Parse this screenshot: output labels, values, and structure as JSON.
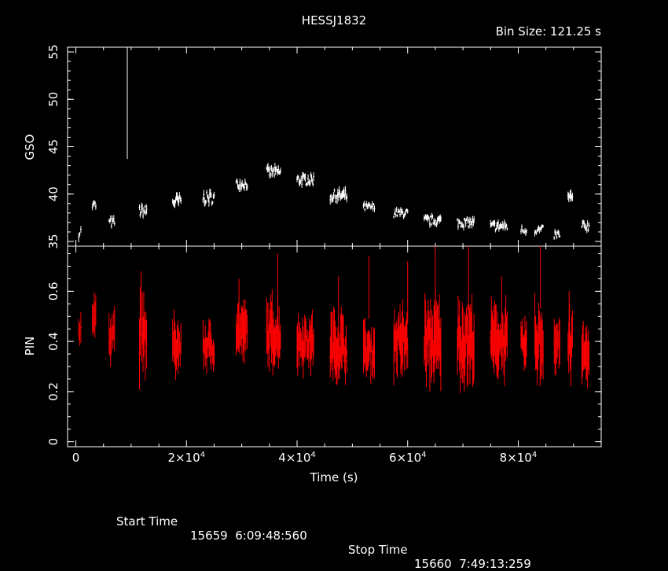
{
  "chart_data": [
    {
      "type": "scatter",
      "title": "HESSJ1832",
      "bin_size_text": "Bin Size: 121.25 s",
      "ylabel": "GSO",
      "ylim": [
        34.5,
        55.5
      ],
      "yticks": [
        "35",
        "40",
        "45",
        "50",
        "55"
      ],
      "xlim": [
        -1500,
        95000
      ],
      "color": "#ffffff",
      "series": [
        {
          "segments": [
            {
              "x0": 500,
              "x1": 900,
              "y": 36.0,
              "spread": 1.0
            },
            {
              "x0": 3000,
              "x1": 3600,
              "y": 38.8,
              "spread": 0.8
            },
            {
              "x0": 6000,
              "x1": 7000,
              "y": 37.0,
              "spread": 0.8
            },
            {
              "x0": 11500,
              "x1": 12800,
              "y": 38.2,
              "spread": 1.0
            },
            {
              "x0": 17500,
              "x1": 19000,
              "y": 39.2,
              "spread": 1.2
            },
            {
              "x0": 23000,
              "x1": 25000,
              "y": 39.6,
              "spread": 1.0
            },
            {
              "x0": 29000,
              "x1": 31000,
              "y": 41.1,
              "spread": 0.8
            },
            {
              "x0": 34500,
              "x1": 37000,
              "y": 42.3,
              "spread": 0.9
            },
            {
              "x0": 40000,
              "x1": 43000,
              "y": 41.5,
              "spread": 0.9
            },
            {
              "x0": 46000,
              "x1": 49000,
              "y": 39.8,
              "spread": 1.0
            },
            {
              "x0": 52000,
              "x1": 54000,
              "y": 38.6,
              "spread": 0.7
            },
            {
              "x0": 57500,
              "x1": 60000,
              "y": 38.0,
              "spread": 0.7
            },
            {
              "x0": 63000,
              "x1": 66000,
              "y": 37.2,
              "spread": 0.8
            },
            {
              "x0": 69000,
              "x1": 72000,
              "y": 37.0,
              "spread": 0.8
            },
            {
              "x0": 75000,
              "x1": 78000,
              "y": 36.6,
              "spread": 0.8
            },
            {
              "x0": 80500,
              "x1": 81500,
              "y": 36.2,
              "spread": 0.7
            },
            {
              "x0": 83000,
              "x1": 84500,
              "y": 36.2,
              "spread": 0.7
            },
            {
              "x0": 86500,
              "x1": 87500,
              "y": 35.7,
              "spread": 0.7
            },
            {
              "x0": 89000,
              "x1": 89800,
              "y": 39.5,
              "spread": 1.2
            },
            {
              "x0": 91500,
              "x1": 92800,
              "y": 36.6,
              "spread": 0.8
            }
          ],
          "spike": {
            "x": 9300,
            "y0": 43.7,
            "y1": 55.5
          }
        }
      ]
    },
    {
      "type": "scatter",
      "xlabel": "Time (s)",
      "ylabel": "PIN",
      "ylim": [
        -0.02,
        0.78
      ],
      "yticks": [
        "0",
        "0.2",
        "0.4",
        "0.6"
      ],
      "xlim": [
        -1500,
        95000
      ],
      "xticks": [
        "0",
        "2×10",
        "4×10",
        "6×10",
        "8×10"
      ],
      "xtick_exp": "4",
      "color": "#ff0000",
      "series": [
        {
          "segments": [
            {
              "x0": 500,
              "x1": 900,
              "y": 0.46,
              "spread": 0.06
            },
            {
              "x0": 3000,
              "x1": 3600,
              "y": 0.49,
              "spread": 0.06
            },
            {
              "x0": 6000,
              "x1": 7000,
              "y": 0.44,
              "spread": 0.08
            },
            {
              "x0": 11500,
              "x1": 12800,
              "y": 0.42,
              "spread": 0.12
            },
            {
              "x0": 17500,
              "x1": 19000,
              "y": 0.38,
              "spread": 0.08
            },
            {
              "x0": 23000,
              "x1": 25000,
              "y": 0.38,
              "spread": 0.07
            },
            {
              "x0": 29000,
              "x1": 31000,
              "y": 0.44,
              "spread": 0.08
            },
            {
              "x0": 34500,
              "x1": 37000,
              "y": 0.43,
              "spread": 0.1
            },
            {
              "x0": 40000,
              "x1": 43000,
              "y": 0.4,
              "spread": 0.08
            },
            {
              "x0": 46000,
              "x1": 49000,
              "y": 0.38,
              "spread": 0.1
            },
            {
              "x0": 52000,
              "x1": 54000,
              "y": 0.36,
              "spread": 0.08
            },
            {
              "x0": 57500,
              "x1": 60000,
              "y": 0.4,
              "spread": 0.1
            },
            {
              "x0": 63000,
              "x1": 66000,
              "y": 0.4,
              "spread": 0.12
            },
            {
              "x0": 69000,
              "x1": 72000,
              "y": 0.4,
              "spread": 0.12
            },
            {
              "x0": 75000,
              "x1": 78000,
              "y": 0.4,
              "spread": 0.1
            },
            {
              "x0": 80500,
              "x1": 81500,
              "y": 0.38,
              "spread": 0.08
            },
            {
              "x0": 83000,
              "x1": 84500,
              "y": 0.4,
              "spread": 0.12
            },
            {
              "x0": 86500,
              "x1": 87500,
              "y": 0.4,
              "spread": 0.08
            },
            {
              "x0": 89000,
              "x1": 89800,
              "y": 0.38,
              "spread": 0.12
            },
            {
              "x0": 91500,
              "x1": 92800,
              "y": 0.35,
              "spread": 0.08
            }
          ],
          "peaks": [
            {
              "x": 11800,
              "y": 0.68
            },
            {
              "x": 29500,
              "y": 0.65
            },
            {
              "x": 36500,
              "y": 0.75
            },
            {
              "x": 47500,
              "y": 0.66
            },
            {
              "x": 53000,
              "y": 0.74
            },
            {
              "x": 60000,
              "y": 0.72
            },
            {
              "x": 65000,
              "y": 0.78
            },
            {
              "x": 71000,
              "y": 0.78
            },
            {
              "x": 77000,
              "y": 0.66
            },
            {
              "x": 84000,
              "y": 0.78
            },
            {
              "x": 89200,
              "y": 0.6
            }
          ]
        }
      ]
    }
  ],
  "footer": {
    "start_label": "Start Time",
    "start_value": "15659  6:09:48:560",
    "stop_label": "Stop Time",
    "stop_value": "15660  7:49:13:259"
  }
}
